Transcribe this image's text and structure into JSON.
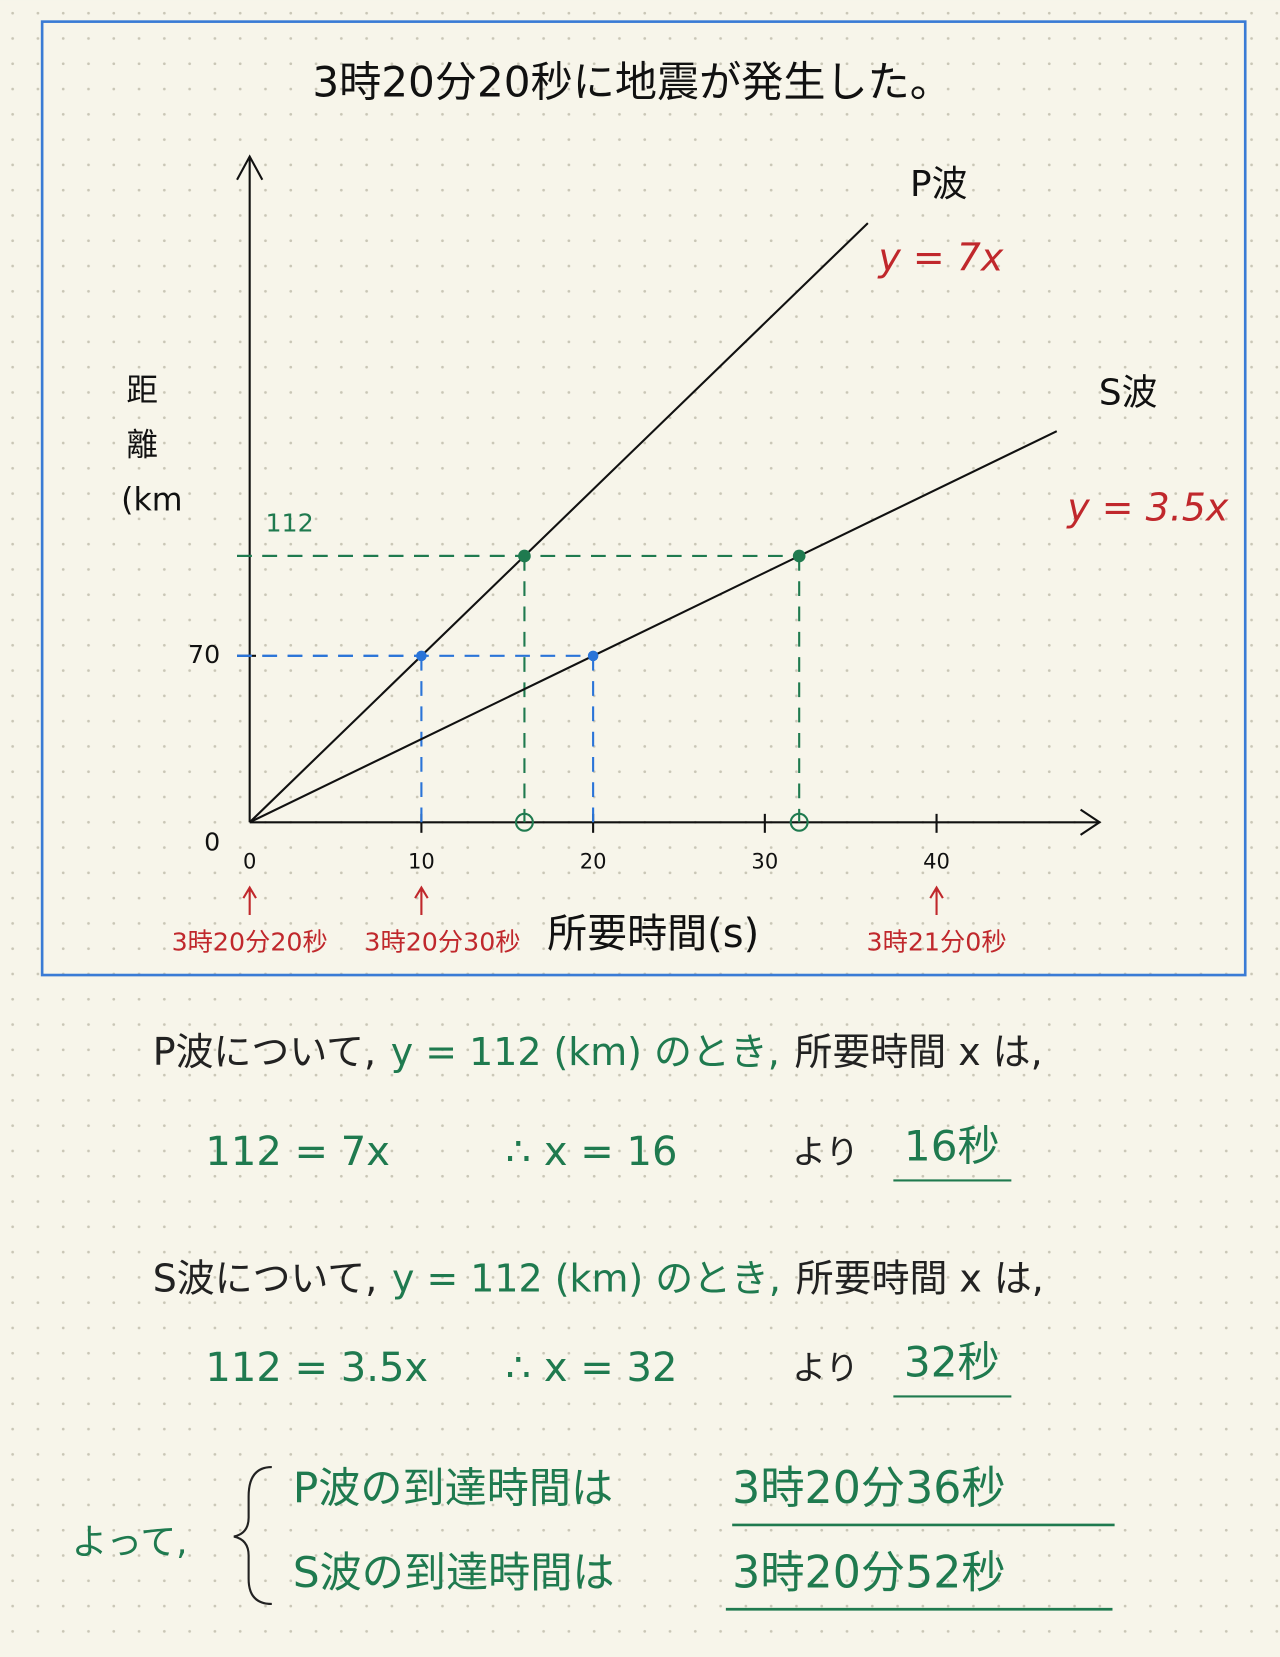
{
  "chart_data": {
    "type": "line",
    "title": "3時20分20秒に地震が発生した。",
    "x_label": "所要時間(s)",
    "y_label": "距離(km)",
    "xlim": [
      0,
      49
    ],
    "ylim": [
      0,
      280
    ],
    "xticks": [
      0,
      10,
      20,
      30,
      40
    ],
    "yticks": [
      0,
      70
    ],
    "marked_ticks": [
      112
    ],
    "marked_color": "#1f7a4f",
    "series": [
      {
        "name": "P波",
        "equation": "y = 7x",
        "color": "#111111",
        "equation_color": "#c0282c",
        "x": [
          0,
          36
        ],
        "values": [
          0,
          252
        ]
      },
      {
        "name": "S波",
        "equation": "y = 3.5x",
        "color": "#111111",
        "equation_color": "#c0282c",
        "x": [
          0,
          47
        ],
        "values": [
          0,
          164.5
        ]
      }
    ],
    "points": [
      {
        "x": 10,
        "y": 70,
        "color": "#2a74d8",
        "circle": false
      },
      {
        "x": 20,
        "y": 70,
        "color": "#2a74d8",
        "circle": false
      },
      {
        "x": 16,
        "y": 112,
        "color": "#1f7a4f",
        "circle": true
      },
      {
        "x": 32,
        "y": 112,
        "color": "#1f7a4f",
        "circle": true
      }
    ],
    "time_labels": [
      {
        "x": 0,
        "label": "3時20分20秒"
      },
      {
        "x": 10,
        "label": "3時20分30秒"
      },
      {
        "x": 40,
        "label": "3時21分0秒"
      }
    ],
    "time_color": "#c0282c"
  },
  "notes": [
    {
      "intro": [
        {
          "text": "P波について,",
          "color": "#222222"
        },
        {
          "text": "y = 112 (km) のとき,",
          "color": "#1f7a4f"
        },
        {
          "text": "所要時間 x は,",
          "color": "#222222"
        }
      ],
      "calc": [
        "112 = 7x",
        "∴ x = 16"
      ],
      "since": "より",
      "answer": "16秒"
    },
    {
      "intro": [
        {
          "text": "S波について,",
          "color": "#222222"
        },
        {
          "text": "y = 112 (km) のとき,",
          "color": "#1f7a4f"
        },
        {
          "text": "所要時間 x は,",
          "color": "#222222"
        }
      ],
      "calc": [
        "112 = 3.5x",
        "∴ x = 32"
      ],
      "since": "より",
      "answer": "32秒"
    }
  ],
  "conclusion": {
    "lead": "よって,",
    "rows": [
      {
        "label": "P波の到達時間は",
        "answer": "3時20分36秒"
      },
      {
        "label": "S波の到達時間は",
        "answer": "3時20分52秒"
      }
    ]
  }
}
